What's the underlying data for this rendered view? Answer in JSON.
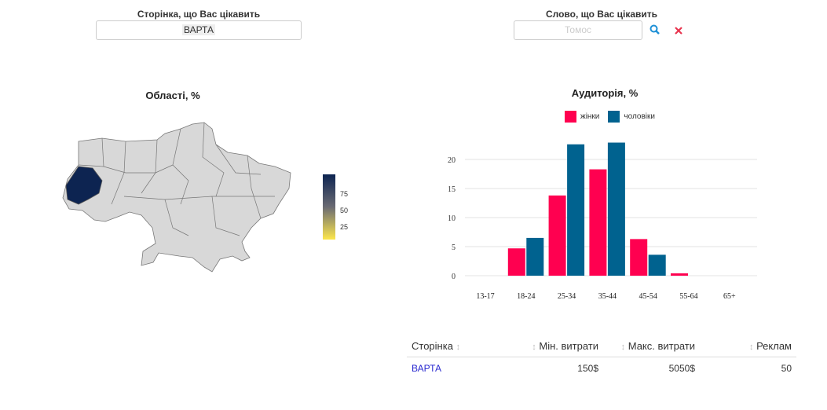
{
  "page_filter": {
    "label": "Сторінка, що Вас цікавить",
    "value": "ВАРТА"
  },
  "word_filter": {
    "label": "Слово, що Вас цікавить",
    "placeholder": "Томос",
    "search_icon": "search-icon",
    "clear_icon": "close-icon"
  },
  "map": {
    "title": "Області, %",
    "colorbar_ticks": [
      "75",
      "50",
      "25"
    ],
    "highlight_color": "#0d2451"
  },
  "chart_data": {
    "type": "bar",
    "title": "Аудиторія, %",
    "categories": [
      "13-17",
      "18-24",
      "25-34",
      "35-44",
      "45-54",
      "55-64",
      "65+"
    ],
    "series": [
      {
        "name": "жінки",
        "color": "#ff0050",
        "values": [
          0,
          4.7,
          13.8,
          18.3,
          6.3,
          0.4,
          0
        ]
      },
      {
        "name": "чоловіки",
        "color": "#00628f",
        "values": [
          0,
          6.5,
          22.6,
          22.9,
          3.6,
          0,
          0
        ]
      }
    ],
    "yticks": [
      0,
      5,
      10,
      15,
      20
    ],
    "ylim": [
      0,
      25
    ],
    "legend": "top-center",
    "grid": true
  },
  "table": {
    "headers": [
      "Сторінка",
      "Мін. витрати",
      "Макс. витрати",
      "Реклам"
    ],
    "rows": [
      {
        "page": "ВАРТА",
        "min": "150$",
        "max": "5050$",
        "ads": "50"
      }
    ]
  }
}
